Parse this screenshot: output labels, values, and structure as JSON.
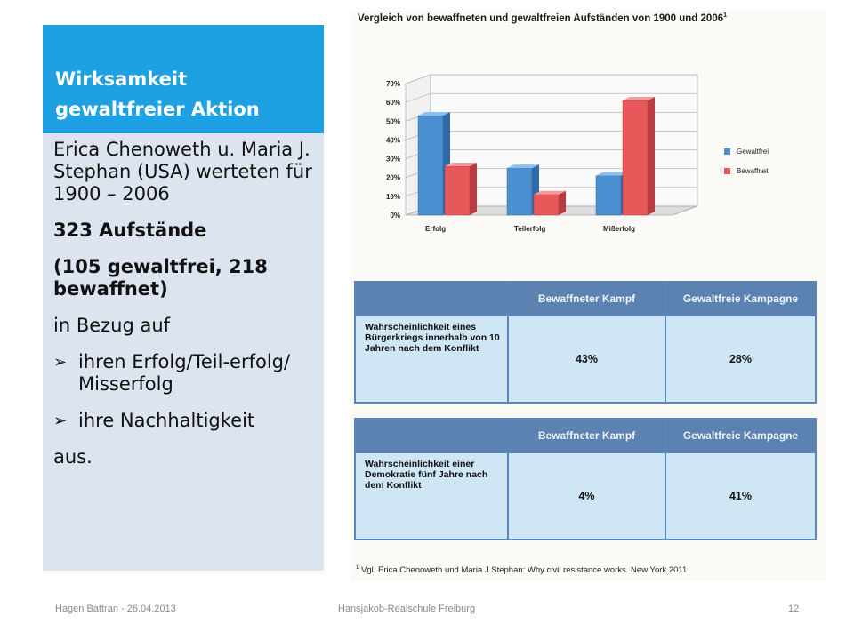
{
  "slide": {
    "title": "Wirksamkeit gewaltfreier Aktion",
    "para1": "Erica Chenoweth u. Maria J. Stephan (USA) werteten für 1900 – 2006",
    "para2": "323 Aufstände",
    "para3": "(105  gewaltfrei, 218 bewaffnet)",
    "para4": "in Bezug auf",
    "bullets": [
      "ihren Erfolg/Teil-erfolg/ Misserfolg",
      "ihre Nachhaltigkeit"
    ],
    "para5": "aus.",
    "colors": {
      "title_bg": "#1da1e2",
      "body_bg": "#dce4ef"
    }
  },
  "figure": {
    "title": "Vergleich von bewaffneten und gewaltfreien Aufständen von 1900 und 2006",
    "title_sup": "1",
    "footnote_sup": "1",
    "footnote": "Vgl. Erica Chenoweth und Maria J.Stephan: Why civil resistance works. New York 2011",
    "table1": {
      "headers": [
        "Bewaffneter Kampf",
        "Gewaltfreie Kampagne"
      ],
      "row_label": "Wahrscheinlichkeit eines Bürgerkriegs innerhalb von 10 Jahren nach dem Konflikt",
      "values": [
        "43%",
        "28%"
      ]
    },
    "table2": {
      "headers": [
        "Bewaffneter Kampf",
        "Gewaltfreie Kampagne"
      ],
      "row_label": "Wahrscheinlichkeit einer Demokratie fünf Jahre nach dem Konflikt",
      "values": [
        "4%",
        "41%"
      ]
    }
  },
  "chart_data": {
    "type": "bar",
    "categories": [
      "Erfolg",
      "Teilerfolg",
      "Mißerfolg"
    ],
    "series": [
      {
        "name": "Gewaltfrei",
        "values": [
          53,
          25,
          21
        ],
        "color": "#4a8fd0"
      },
      {
        "name": "Bewaffnet",
        "values": [
          26,
          11,
          61
        ],
        "color": "#e8575a"
      }
    ],
    "yticks": [
      "0%",
      "10%",
      "20%",
      "30%",
      "40%",
      "50%",
      "60%",
      "70%"
    ],
    "ylim": [
      0,
      70
    ],
    "legend": "right",
    "grid": true
  },
  "footer": {
    "left": "Hagen Battran - 26.04.2013",
    "center": "Hansjakob-Realschule Freiburg",
    "page": "12"
  }
}
